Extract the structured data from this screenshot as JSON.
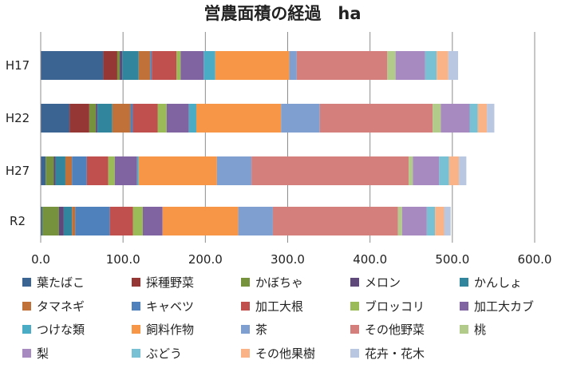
{
  "chart_data": {
    "type": "bar",
    "orientation": "horizontal",
    "stacked": true,
    "title": "営農面積の経過　ha",
    "xlim": [
      0,
      600
    ],
    "x_ticks": [
      "0.0",
      "100.0",
      "200.0",
      "300.0",
      "400.0",
      "500.0",
      "600.0"
    ],
    "grid": "vertical",
    "legend_position": "bottom",
    "categories": [
      "H17",
      "H22",
      "H27",
      "R2"
    ],
    "series": [
      {
        "name": "葉たばこ",
        "color": "#3C6493",
        "values": [
          76,
          35,
          6,
          2
        ]
      },
      {
        "name": "採種野菜",
        "color": "#953735",
        "values": [
          17,
          24,
          0,
          0
        ]
      },
      {
        "name": "かぼちゃ",
        "color": "#76923C",
        "values": [
          3,
          8,
          10,
          20
        ]
      },
      {
        "name": "メロン",
        "color": "#5F497A",
        "values": [
          3,
          2,
          2,
          6
        ]
      },
      {
        "name": "かんしょ",
        "color": "#31859C",
        "values": [
          20,
          18,
          12,
          10
        ]
      },
      {
        "name": "タマネギ",
        "color": "#C0713A",
        "values": [
          14,
          22,
          8,
          4
        ]
      },
      {
        "name": "キャベツ",
        "color": "#4F81BD",
        "values": [
          2,
          3,
          18,
          42
        ]
      },
      {
        "name": "加工大根",
        "color": "#C0504D",
        "values": [
          30,
          30,
          26,
          28
        ]
      },
      {
        "name": "ブロッコリ",
        "color": "#9BBB59",
        "values": [
          5,
          11,
          8,
          12
        ]
      },
      {
        "name": "加工大カブ",
        "color": "#8064A2",
        "values": [
          28,
          27,
          27,
          24
        ]
      },
      {
        "name": "つけな類",
        "color": "#4BACC6",
        "values": [
          14,
          9,
          2,
          0
        ]
      },
      {
        "name": "飼料作物",
        "color": "#F79646",
        "values": [
          90,
          103,
          95,
          92
        ]
      },
      {
        "name": "茶",
        "color": "#7F9FD0",
        "values": [
          9,
          47,
          42,
          42
        ]
      },
      {
        "name": "その他野菜",
        "color": "#D57F7D",
        "values": [
          110,
          137,
          191,
          152
        ]
      },
      {
        "name": "桃",
        "color": "#B3CB8A",
        "values": [
          10,
          10,
          5,
          5
        ]
      },
      {
        "name": "梨",
        "color": "#A68AC0",
        "values": [
          36,
          35,
          32,
          30
        ]
      },
      {
        "name": "ぶどう",
        "color": "#78C1D4",
        "values": [
          14,
          10,
          12,
          10
        ]
      },
      {
        "name": "その他果樹",
        "color": "#F9B386",
        "values": [
          14,
          11,
          12,
          11
        ]
      },
      {
        "name": "花卉・花木",
        "color": "#B9C8E0",
        "values": [
          12,
          9,
          9,
          8
        ]
      }
    ]
  }
}
